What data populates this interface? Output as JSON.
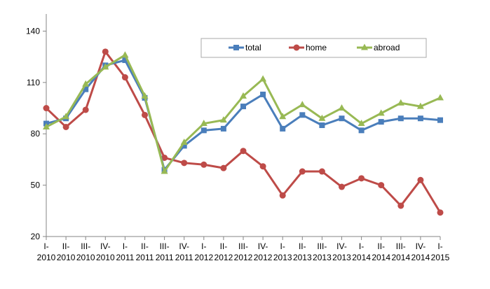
{
  "chart_data": {
    "type": "line",
    "title": "",
    "xlabel": "",
    "ylabel": "",
    "ylim": [
      20,
      150
    ],
    "yticks": [
      20,
      50,
      80,
      110,
      140
    ],
    "grid": false,
    "legend_position": "top-right",
    "categories": [
      [
        "I-",
        "2010"
      ],
      [
        "II-",
        "2010"
      ],
      [
        "III-",
        "2010"
      ],
      [
        "IV-",
        "2010"
      ],
      [
        "I-",
        "2011"
      ],
      [
        "II-",
        "2011"
      ],
      [
        "III-",
        "2011"
      ],
      [
        "IV-",
        "2011"
      ],
      [
        "I-",
        "2012"
      ],
      [
        "II-",
        "2012"
      ],
      [
        "III-",
        "2012"
      ],
      [
        "IV-",
        "2012"
      ],
      [
        "I-",
        "2013"
      ],
      [
        "II-",
        "2013"
      ],
      [
        "III-",
        "2013"
      ],
      [
        "IV-",
        "2013"
      ],
      [
        "I-",
        "2014"
      ],
      [
        "II-",
        "2014"
      ],
      [
        "III-",
        "2014"
      ],
      [
        "IV-",
        "2014"
      ],
      [
        "I-",
        "2015"
      ]
    ],
    "series": [
      {
        "name": "total",
        "color": "#4a7ebb",
        "marker": "square",
        "values": [
          86,
          89,
          106,
          120,
          123,
          101,
          59,
          73,
          82,
          83,
          96,
          103,
          83,
          91,
          85,
          89,
          82,
          87,
          89,
          89,
          88
        ]
      },
      {
        "name": "home",
        "color": "#be4b48",
        "marker": "circle",
        "values": [
          95,
          84,
          94,
          128,
          113,
          91,
          66,
          63,
          62,
          60,
          70,
          61,
          44,
          58,
          58,
          49,
          54,
          50,
          38,
          53,
          34
        ]
      },
      {
        "name": "abroad",
        "color": "#98b954",
        "marker": "triangle",
        "values": [
          84,
          90,
          109,
          119,
          126,
          102,
          58,
          75,
          86,
          88,
          102,
          112,
          90,
          97,
          89,
          95,
          86,
          92,
          98,
          96,
          101
        ]
      }
    ]
  }
}
